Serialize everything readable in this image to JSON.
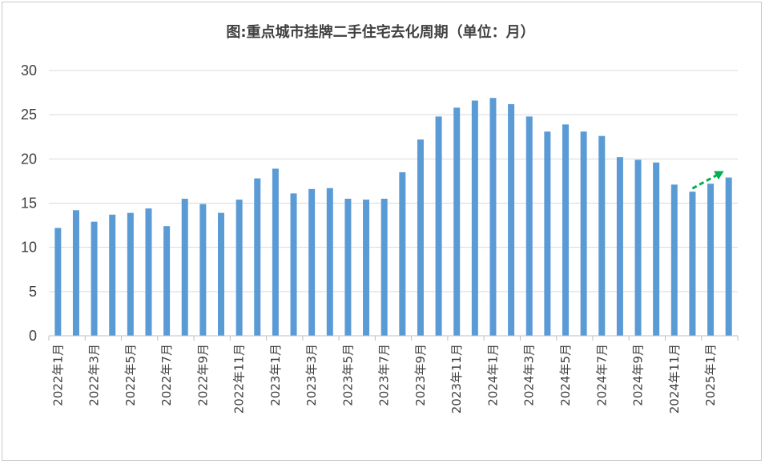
{
  "chart_data": {
    "type": "bar",
    "title": "图:重点城市挂牌二手住宅去化周期（单位：月）",
    "xlabel": "",
    "ylabel": "",
    "ylim": [
      0,
      30
    ],
    "yticks": [
      0,
      5,
      10,
      15,
      20,
      25,
      30
    ],
    "grid": true,
    "legend": "none",
    "bar_color": "#5b9bd5",
    "annotation_color": "#00b050",
    "annotation": {
      "type": "dashed-arrow",
      "from_category": "2024年12月",
      "to_category": "2025年2月"
    },
    "categories": [
      "2022年1月",
      "2022年2月",
      "2022年3月",
      "2022年4月",
      "2022年5月",
      "2022年6月",
      "2022年7月",
      "2022年8月",
      "2022年9月",
      "2022年10月",
      "2022年11月",
      "2022年12月",
      "2023年1月",
      "2023年2月",
      "2023年3月",
      "2023年4月",
      "2023年5月",
      "2023年6月",
      "2023年7月",
      "2023年8月",
      "2023年9月",
      "2023年10月",
      "2023年11月",
      "2023年12月",
      "2024年1月",
      "2024年2月",
      "2024年3月",
      "2024年4月",
      "2024年5月",
      "2024年6月",
      "2024年7月",
      "2024年8月",
      "2024年9月",
      "2024年10月",
      "2024年11月",
      "2024年12月",
      "2025年1月",
      "2025年2月"
    ],
    "tick_labels": [
      "2022年1月",
      "2022年3月",
      "2022年5月",
      "2022年7月",
      "2022年9月",
      "2022年11月",
      "2023年1月",
      "2023年3月",
      "2023年5月",
      "2023年7月",
      "2023年9月",
      "2023年11月",
      "2024年1月",
      "2024年3月",
      "2024年5月",
      "2024年7月",
      "2024年9月",
      "2024年11月",
      "2025年1月"
    ],
    "values": [
      12.2,
      14.2,
      12.9,
      13.7,
      13.9,
      14.4,
      12.4,
      15.5,
      14.9,
      13.9,
      15.4,
      17.8,
      18.9,
      16.1,
      16.6,
      16.7,
      15.5,
      15.4,
      15.5,
      18.5,
      22.2,
      24.8,
      25.8,
      26.6,
      26.9,
      26.2,
      24.8,
      23.1,
      23.9,
      23.1,
      22.6,
      20.2,
      19.9,
      19.6,
      17.1,
      16.3,
      17.2,
      17.9
    ]
  }
}
